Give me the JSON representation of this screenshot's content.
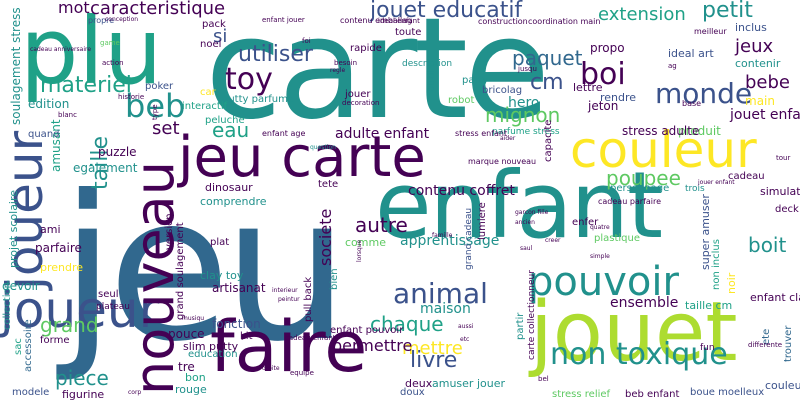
{
  "palette": {
    "purple": "#440154",
    "indigo": "#3b528b",
    "teal": "#21918c",
    "green": "#5ec962",
    "yellow": "#fde725",
    "lime": "#addc30",
    "blue": "#31688e",
    "sea": "#1fa187"
  },
  "words": [
    "carte",
    "jeu",
    "enfant",
    "jouet",
    "plu",
    "faire",
    "jeu carte",
    "couleur",
    "joueur",
    "nouveau",
    "pouvoir",
    "non toxique",
    "beb",
    "toy",
    "boi",
    "monde",
    "jouet educatif",
    "caracteristique",
    "mot",
    "si",
    "utiliser",
    "materiel",
    "paquet",
    "petit",
    "extension",
    "jeux",
    "cm",
    "bebe",
    "mignon",
    "poupee",
    "animal",
    "autre",
    "taille",
    "set",
    "eau",
    "livre",
    "chaque",
    "mettre",
    "piece",
    "grand",
    "boit",
    "permettre",
    "maison",
    "apprentissage",
    "contenu coffret",
    "adulte enfant",
    "societe",
    "jouet enfant",
    "produit",
    "stress adulte",
    "main",
    "propo",
    "inclus",
    "contenir",
    "ideal art",
    "hero",
    "jeton",
    "rendre",
    "lettre",
    "robot",
    "bricolag",
    "party",
    "edition",
    "puzzle",
    "amusant",
    "egalement",
    "parfaire",
    "ami",
    "prendre",
    "devoir",
    "projet scolaire",
    "soulagement stress",
    "artisanat",
    "clay toy",
    "comprendre",
    "dinosaur",
    "slim putty",
    "fonction",
    "pouce",
    "tre",
    "bon",
    "rouge",
    "figurine",
    "education",
    "ensemble",
    "taille cm",
    "non inclus",
    "super amuser",
    "enfant clay",
    "noir",
    "amuser jouer",
    "deux",
    "doux",
    "stress relief",
    "beb enfant",
    "boue moelleux",
    "couleur comme",
    "forme",
    "collection",
    "sac",
    "accessoire",
    "modele",
    "quand",
    "version",
    "grand soulagement",
    "pull back",
    "putty parfume",
    "interactif",
    "peluche",
    "jouer",
    "rapide",
    "car",
    "pack",
    "noel",
    "propre",
    "enfer",
    "cadeau",
    "simulation",
    "deck",
    "trois",
    "personnage",
    "plastique",
    "lumiere",
    "tete",
    "plat",
    "comme",
    "bien",
    "fun",
    "description",
    "outil",
    "toute",
    "ideal enfant",
    "enfant jouer",
    "contenu emballag",
    "coordination main",
    "construction",
    "poker",
    "parfume stress",
    "enfant age",
    "stress enfant",
    "marque nouveau",
    "capacite",
    "ete",
    "trouver",
    "kit",
    "enfant pouvoir",
    "cadeau enfant",
    "differente",
    "tour",
    "cadeau parfaire",
    "meilleur",
    "jusqu",
    "ag",
    "foi",
    "besoin",
    "game",
    "action",
    "historie",
    "blanc",
    "type",
    "decoration",
    "base",
    "grand cadeau",
    "question",
    "aider",
    "jouer enfant",
    "garcon fille",
    "ancien",
    "famille",
    "creer",
    "quatre",
    "saul",
    "simple",
    "lorsque",
    "interieur",
    "peintur",
    "droite",
    "corp",
    "aussi",
    "etc",
    "bel",
    "equipe",
    "conception",
    "cadeau anniversaire",
    "regle",
    "carte collectionneur",
    "seul",
    "plateau",
    "musiqu",
    "partir",
    "puzzl",
    "jouet animal",
    "artisanat projet"
  ]
}
